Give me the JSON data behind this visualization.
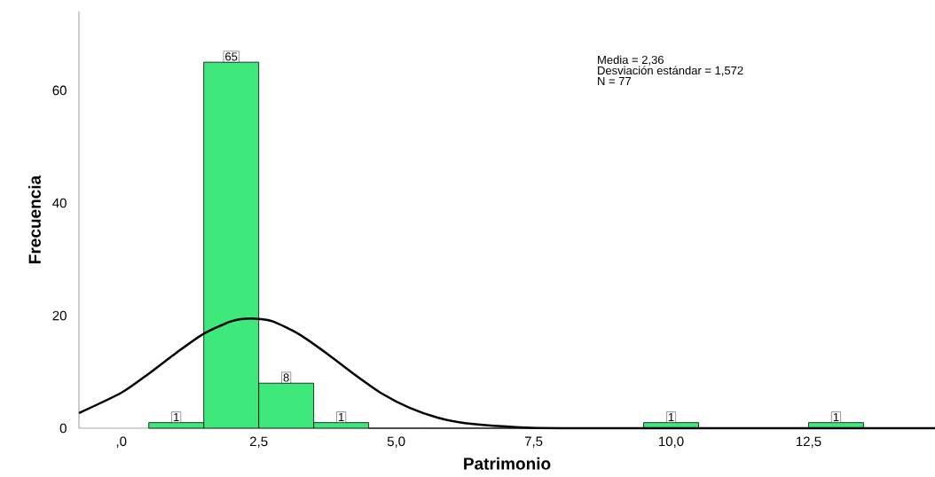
{
  "chart_data": {
    "type": "histogram",
    "xlabel": "Patrimonio",
    "ylabel": "Frecuencia",
    "annotations": [
      "Media = 2,36",
      "Desviación estándar = 1,572",
      "N = 77"
    ],
    "xlim": [
      -0.77,
      14.8
    ],
    "ylim": [
      0,
      74
    ],
    "xticks": [
      {
        "value": 0,
        "label": ",0"
      },
      {
        "value": 2.5,
        "label": "2,5"
      },
      {
        "value": 5,
        "label": "5,0"
      },
      {
        "value": 7.5,
        "label": "7,5"
      },
      {
        "value": 10,
        "label": "10,0"
      },
      {
        "value": 12.5,
        "label": "12,5"
      }
    ],
    "yticks": [
      0,
      20,
      40,
      60
    ],
    "grid": false,
    "series": [
      {
        "color": "#3ee87a",
        "bins": [
          0.5,
          1.5,
          2.5,
          3.5,
          4.5,
          5.5,
          6.5,
          7.5,
          8.5,
          9.5,
          10.5,
          11.5,
          12.5,
          13.5
        ],
        "values": [
          1,
          65,
          8,
          1,
          0,
          0,
          0,
          0,
          0,
          1,
          0,
          0,
          1
        ],
        "value_labels": [
          "1",
          "65",
          "8",
          "1",
          null,
          null,
          null,
          null,
          null,
          "1",
          null,
          null,
          "1"
        ]
      },
      {
        "type": "line",
        "color": "#000000",
        "x": [
          -0.77,
          0,
          0.5,
          1,
          1.5,
          2,
          2.36,
          2.75,
          3.25,
          3.75,
          4.25,
          4.75,
          5.25,
          5.75,
          6.25,
          7,
          8,
          14.8
        ],
        "values": [
          2.7,
          6.3,
          9.7,
          13.4,
          16.8,
          19.0,
          19.5,
          19.0,
          16.6,
          13.2,
          9.5,
          6.1,
          3.6,
          1.9,
          0.9,
          0.3,
          0,
          0
        ]
      }
    ]
  }
}
